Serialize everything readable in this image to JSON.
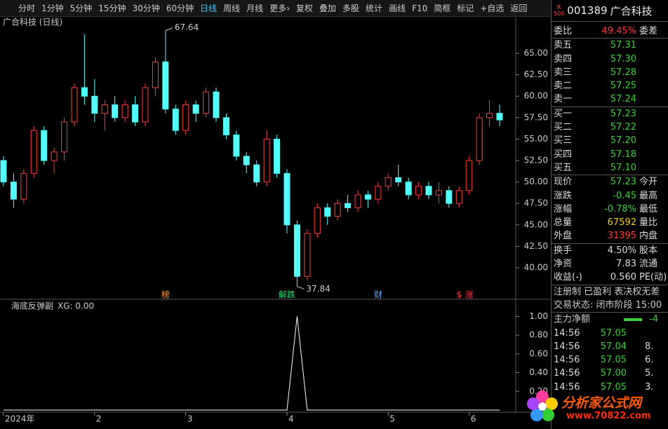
{
  "toolbar": {
    "items": [
      "分时",
      "1分钟",
      "5分钟",
      "15分钟",
      "30分钟",
      "60分钟",
      "日线",
      "周线",
      "月线",
      "更多›",
      "复权",
      "叠加",
      "多股",
      "统计",
      "画线",
      "F10",
      "简框",
      "标记",
      "+自选",
      "返回"
    ],
    "active": 6
  },
  "chart_data": {
    "type": "candlestick",
    "title": "广合科技 (日线)",
    "candles": [
      {
        "open": 52.5,
        "high": 53,
        "low": 49.5,
        "close": 50
      },
      {
        "open": 50,
        "high": 51,
        "low": 47,
        "close": 48
      },
      {
        "open": 48,
        "high": 51.5,
        "low": 47.5,
        "close": 51
      },
      {
        "open": 51,
        "high": 56.5,
        "low": 50.5,
        "close": 56
      },
      {
        "open": 56,
        "high": 56.5,
        "low": 52,
        "close": 52.5
      },
      {
        "open": 52.5,
        "high": 54,
        "low": 51,
        "close": 53.5
      },
      {
        "open": 53.5,
        "high": 57.5,
        "low": 52.5,
        "close": 57
      },
      {
        "open": 57,
        "high": 61.5,
        "low": 56.5,
        "close": 61
      },
      {
        "open": 61,
        "high": 67.2,
        "low": 59,
        "close": 60
      },
      {
        "open": 60,
        "high": 62,
        "low": 57,
        "close": 58
      },
      {
        "open": 58,
        "high": 59.5,
        "low": 56,
        "close": 59
      },
      {
        "open": 59,
        "high": 60,
        "low": 57,
        "close": 57.5
      },
      {
        "open": 57.5,
        "high": 59.5,
        "low": 57,
        "close": 59
      },
      {
        "open": 59,
        "high": 60,
        "low": 56.5,
        "close": 57
      },
      {
        "open": 57,
        "high": 61.5,
        "low": 56.5,
        "close": 61
      },
      {
        "open": 61,
        "high": 64.5,
        "low": 60,
        "close": 64
      },
      {
        "open": 64,
        "high": 67.64,
        "low": 58,
        "close": 58.5
      },
      {
        "open": 58.5,
        "high": 59,
        "low": 55.5,
        "close": 56
      },
      {
        "open": 56,
        "high": 59.5,
        "low": 55.5,
        "close": 59
      },
      {
        "open": 59,
        "high": 59.5,
        "low": 57,
        "close": 58
      },
      {
        "open": 58,
        "high": 61,
        "low": 57.5,
        "close": 60.5
      },
      {
        "open": 60.5,
        "high": 61,
        "low": 57,
        "close": 57.5
      },
      {
        "open": 57.5,
        "high": 58,
        "low": 55,
        "close": 55.5
      },
      {
        "open": 55.5,
        "high": 56,
        "low": 52.5,
        "close": 53
      },
      {
        "open": 53,
        "high": 53.5,
        "low": 51,
        "close": 52
      },
      {
        "open": 52,
        "high": 52.5,
        "low": 49.5,
        "close": 50
      },
      {
        "open": 50,
        "high": 56,
        "low": 49.5,
        "close": 55
      },
      {
        "open": 55,
        "high": 55.5,
        "low": 50.5,
        "close": 51
      },
      {
        "open": 51,
        "high": 51.5,
        "low": 44,
        "close": 45
      },
      {
        "open": 45,
        "high": 45.5,
        "low": 37.84,
        "close": 39
      },
      {
        "open": 39,
        "high": 44.5,
        "low": 38.5,
        "close": 44
      },
      {
        "open": 44,
        "high": 47.5,
        "low": 43.5,
        "close": 47
      },
      {
        "open": 47,
        "high": 47.5,
        "low": 45,
        "close": 46
      },
      {
        "open": 46,
        "high": 48,
        "low": 45.5,
        "close": 47.5
      },
      {
        "open": 47.5,
        "high": 48.5,
        "low": 46.5,
        "close": 47
      },
      {
        "open": 47,
        "high": 49,
        "low": 46.5,
        "close": 48.5
      },
      {
        "open": 48.5,
        "high": 49,
        "low": 47,
        "close": 48
      },
      {
        "open": 48,
        "high": 50,
        "low": 47.5,
        "close": 49.5
      },
      {
        "open": 49.5,
        "high": 51,
        "low": 49,
        "close": 50.5
      },
      {
        "open": 50.5,
        "high": 52,
        "low": 49.5,
        "close": 50
      },
      {
        "open": 50,
        "high": 50.5,
        "low": 48,
        "close": 48.5
      },
      {
        "open": 48.5,
        "high": 50,
        "low": 48,
        "close": 49.5
      },
      {
        "open": 49.5,
        "high": 50,
        "low": 48,
        "close": 48.5
      },
      {
        "open": 48.5,
        "high": 50,
        "low": 47.5,
        "close": 49
      },
      {
        "open": 49,
        "high": 49.5,
        "low": 47,
        "close": 47.5
      },
      {
        "open": 47.5,
        "high": 49.5,
        "low": 47,
        "close": 49
      },
      {
        "open": 49,
        "high": 53,
        "low": 48.5,
        "close": 52.5
      },
      {
        "open": 52.5,
        "high": 58,
        "low": 52,
        "close": 57.5
      },
      {
        "open": 57.5,
        "high": 59.5,
        "low": 56.5,
        "close": 58
      },
      {
        "open": 58,
        "high": 59,
        "low": 56.5,
        "close": 57.23
      }
    ],
    "categories": [
      "2024年",
      null,
      null,
      null,
      null,
      null,
      null,
      null,
      null,
      "2",
      null,
      null,
      null,
      null,
      null,
      null,
      null,
      null,
      "3",
      null,
      null,
      null,
      null,
      null,
      null,
      null,
      null,
      null,
      "4",
      null,
      null,
      null,
      null,
      null,
      null,
      null,
      null,
      null,
      "5",
      null,
      null,
      null,
      null,
      null,
      null,
      null,
      "6",
      null,
      null,
      null
    ],
    "events": [
      null,
      null,
      null,
      null,
      null,
      null,
      null,
      null,
      null,
      null,
      null,
      null,
      null,
      null,
      null,
      null,
      "榜",
      null,
      null,
      null,
      null,
      null,
      null,
      null,
      null,
      null,
      null,
      null,
      "解跌",
      null,
      null,
      null,
      null,
      null,
      null,
      null,
      null,
      "财",
      null,
      null,
      null,
      null,
      null,
      null,
      null,
      "$",
      "涨",
      null,
      null,
      null
    ],
    "ylim": [
      37.06,
      69.17
    ],
    "yticks": [
      {
        "value": 40,
        "label": "40.00"
      },
      {
        "value": 42.5,
        "label": "42.50"
      },
      {
        "value": 45,
        "label": "45.00"
      },
      {
        "value": 47.5,
        "label": "47.50"
      },
      {
        "value": 50,
        "label": "50.00"
      },
      {
        "value": 52.5,
        "label": "52.50"
      },
      {
        "value": 55,
        "label": "55.00"
      },
      {
        "value": 57.5,
        "label": "57.50"
      },
      {
        "value": 60,
        "label": "60.00"
      },
      {
        "value": 62.5,
        "label": "62.50"
      },
      {
        "value": 65,
        "label": "65.00"
      }
    ],
    "up_color": "#ff3c3c",
    "down_color": "#54fcfc"
  },
  "indicator": {
    "type": "line",
    "title": "海底反弹副",
    "label": "XG: 0.00",
    "color": "#ffffff",
    "values": [
      0,
      0,
      0,
      0,
      0,
      0,
      0,
      0,
      0,
      0,
      0,
      0,
      0,
      0,
      0,
      0,
      0,
      0,
      0,
      0,
      0,
      0,
      0,
      0,
      0,
      0,
      0,
      0,
      0,
      1,
      0,
      0,
      0,
      0,
      0,
      0,
      0,
      0,
      0,
      0,
      0,
      0,
      0,
      0,
      0,
      0,
      0,
      0,
      0,
      0
    ],
    "ylim": [
      0,
      1.16
    ],
    "yticks": [
      {
        "value": 0.2,
        "label": "0.20"
      },
      {
        "value": 0.4,
        "label": "0.40"
      },
      {
        "value": 0.6,
        "label": "0.60"
      },
      {
        "value": 0.8,
        "label": "0.80"
      },
      {
        "value": 1,
        "label": "1.00"
      }
    ]
  },
  "quote": {
    "badge_top": "R",
    "badge_bottom": "500",
    "code": "001389",
    "name": "广合科技",
    "weibi": [
      "委比",
      "49.45%",
      "委差"
    ],
    "book": [
      [
        "卖五",
        "57.31"
      ],
      [
        "卖四",
        "57.30"
      ],
      [
        "卖三",
        "57.28"
      ],
      [
        "卖二",
        "57.25"
      ],
      [
        "卖一",
        "57.24"
      ],
      [
        "买一",
        "57.23"
      ],
      [
        "买二",
        "57.22"
      ],
      [
        "买三",
        "57.20"
      ],
      [
        "买四",
        "57.18"
      ],
      [
        "买五",
        "57.10"
      ]
    ],
    "stats": [
      [
        "现价",
        "57.23",
        "今开"
      ],
      [
        "涨跌",
        "-0.45",
        "最高"
      ],
      [
        "涨幅",
        "-0.78%",
        "最低"
      ],
      [
        "总量",
        "67592",
        "量比"
      ],
      [
        "外盘",
        "31395",
        "内盘"
      ],
      [
        "换手",
        "4.50%",
        "股本"
      ],
      [
        "净资",
        "7.83",
        "流通"
      ],
      [
        "收益(-)",
        "0.560",
        "PE(动)"
      ]
    ],
    "tags": "注册制 已盈利 表决权无差",
    "status": "交易状态: 闭市阶段 15:00",
    "flow_title": "主力净额",
    "flow_value": "-4",
    "ticks": [
      [
        "14:56",
        "57.05"
      ],
      [
        "14:56",
        "57.04",
        "8."
      ],
      [
        "14:56",
        "57.05",
        "6."
      ],
      [
        "14:56",
        "57.00",
        "5."
      ],
      [
        "14:56",
        "57.05",
        "3."
      ]
    ]
  },
  "watermark": {
    "title": "分析家公式网",
    "url": "www.70822.com"
  }
}
